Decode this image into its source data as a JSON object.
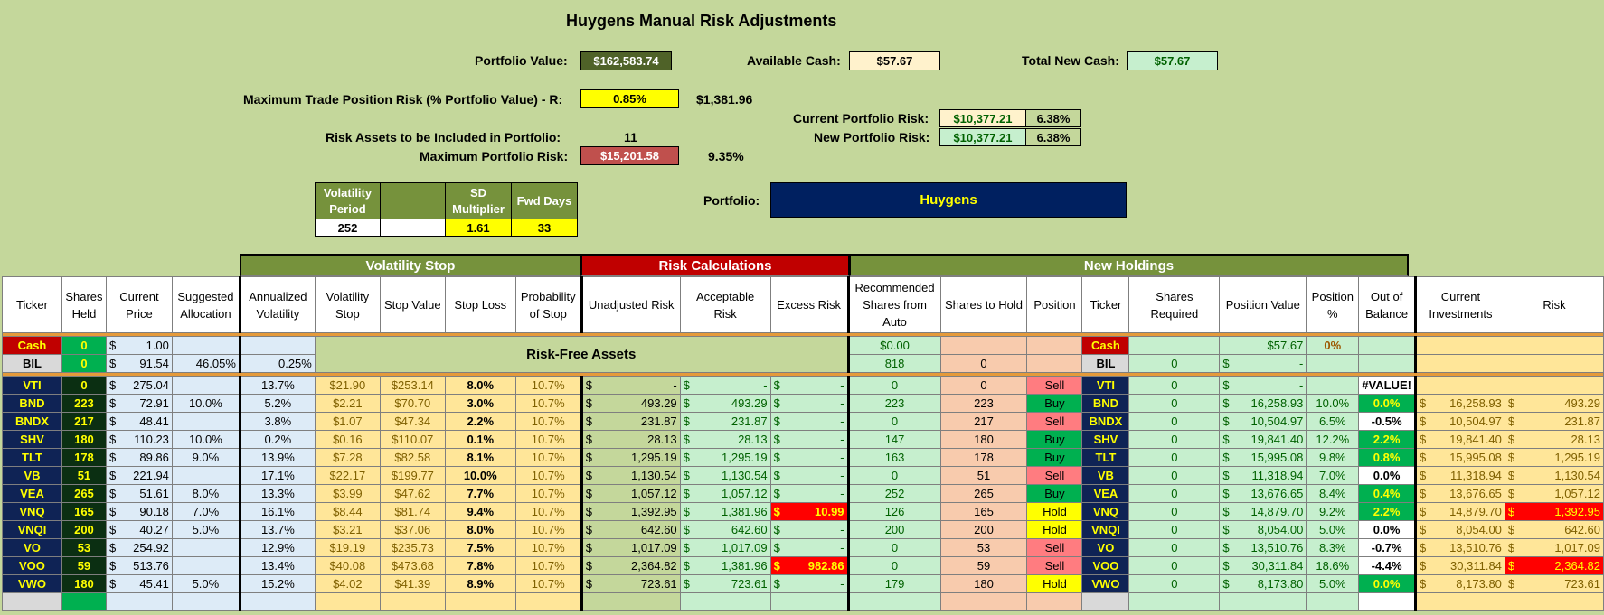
{
  "title": "Huygens Manual Risk Adjustments",
  "portfolio_value": {
    "label": "Portfolio Value:",
    "value": "$162,583.74"
  },
  "available_cash": {
    "label": "Available Cash:",
    "value": "$57.67"
  },
  "total_new_cash": {
    "label": "Total New Cash:",
    "value": "$57.67"
  },
  "max_trade_risk": {
    "label": "Maximum Trade Position Risk (% Portfolio Value) - R:",
    "value": "0.85%",
    "amount": "$1,381.96"
  },
  "current_portfolio_risk": {
    "label": "Current Portfolio Risk:",
    "value": "$10,377.21",
    "pct": "6.38%"
  },
  "new_portfolio_risk": {
    "label": "New Portfolio Risk:",
    "value": "$10,377.21",
    "pct": "6.38%"
  },
  "risk_assets": {
    "label": "Risk Assets to be Included in Portfolio:",
    "value": "11"
  },
  "max_portfolio_risk": {
    "label": "Maximum Portfolio Risk:",
    "value": "$15,201.58",
    "pct": "9.35%"
  },
  "params": {
    "vol_period_label": "Volatility Period",
    "sd_mult_label": "SD Multiplier",
    "fwd_days_label": "Fwd Days",
    "vol_period": "252",
    "sd_mult": "1.61",
    "fwd_days": "33"
  },
  "portfolio": {
    "label": "Portfolio:",
    "value": "Huygens"
  },
  "sections": {
    "vol_stop": "Volatility Stop",
    "risk_calc": "Risk Calculations",
    "new_holdings": "New Holdings"
  },
  "headers": [
    "Ticker",
    "Shares Held",
    "Current Price",
    "Suggested Allocation",
    "Annualized Volatility",
    "Volatility Stop",
    "Stop Value",
    "Stop Loss",
    "Probability of Stop",
    "Unadjusted Risk",
    "Acceptable Risk",
    "Excess Risk",
    "Recommended Shares from Auto",
    "Shares to Hold",
    "Position",
    "Ticker",
    "Shares Required",
    "Position Value",
    "Position %",
    "Out of Balance",
    "Current Investments",
    "Risk"
  ],
  "risk_free_label": "Risk-Free Assets",
  "cash_row": {
    "ticker": "Cash",
    "shares": "0",
    "price": "1.00",
    "rec": "$0.00",
    "ticker2": "Cash",
    "pos_value": "$57.67",
    "pos_pct": "0%"
  },
  "bil_row": {
    "ticker": "BIL",
    "shares": "0",
    "price": "91.54",
    "alloc": "46.05%",
    "vol": "0.25%",
    "rec": "818",
    "hold": "0",
    "ticker2": "BIL",
    "req": "0",
    "pos_value": "-"
  },
  "rows": [
    {
      "ticker": "VTI",
      "shares": "0",
      "price": "275.04",
      "alloc": "",
      "vol": "13.7%",
      "vstop": "$21.90",
      "svalue": "$253.14",
      "sloss": "8.0%",
      "prob": "10.7%",
      "unadj": "-",
      "accept": "-",
      "excess": "-",
      "rec": "0",
      "hold": "0",
      "pos": "Sell",
      "req": "0",
      "pval": "-",
      "ppct": "",
      "oob": "#VALUE!",
      "curinv": "",
      "risk": ""
    },
    {
      "ticker": "BND",
      "shares": "223",
      "price": "72.91",
      "alloc": "10.0%",
      "vol": "5.2%",
      "vstop": "$2.21",
      "svalue": "$70.70",
      "sloss": "3.0%",
      "prob": "10.7%",
      "unadj": "493.29",
      "accept": "493.29",
      "excess": "-",
      "rec": "223",
      "hold": "223",
      "pos": "Buy",
      "req": "0",
      "pval": "16,258.93",
      "ppct": "10.0%",
      "oob": "0.0%",
      "curinv": "16,258.93",
      "risk": "493.29"
    },
    {
      "ticker": "BNDX",
      "shares": "217",
      "price": "48.41",
      "alloc": "",
      "vol": "3.8%",
      "vstop": "$1.07",
      "svalue": "$47.34",
      "sloss": "2.2%",
      "prob": "10.7%",
      "unadj": "231.87",
      "accept": "231.87",
      "excess": "-",
      "rec": "0",
      "hold": "217",
      "pos": "Sell",
      "req": "0",
      "pval": "10,504.97",
      "ppct": "6.5%",
      "oob": "-0.5%",
      "curinv": "10,504.97",
      "risk": "231.87"
    },
    {
      "ticker": "SHV",
      "shares": "180",
      "price": "110.23",
      "alloc": "10.0%",
      "vol": "0.2%",
      "vstop": "$0.16",
      "svalue": "$110.07",
      "sloss": "0.1%",
      "prob": "10.7%",
      "unadj": "28.13",
      "accept": "28.13",
      "excess": "-",
      "rec": "147",
      "hold": "180",
      "pos": "Buy",
      "req": "0",
      "pval": "19,841.40",
      "ppct": "12.2%",
      "oob": "2.2%",
      "curinv": "19,841.40",
      "risk": "28.13"
    },
    {
      "ticker": "TLT",
      "shares": "178",
      "price": "89.86",
      "alloc": "9.0%",
      "vol": "13.9%",
      "vstop": "$7.28",
      "svalue": "$82.58",
      "sloss": "8.1%",
      "prob": "10.7%",
      "unadj": "1,295.19",
      "accept": "1,295.19",
      "excess": "-",
      "rec": "163",
      "hold": "178",
      "pos": "Buy",
      "req": "0",
      "pval": "15,995.08",
      "ppct": "9.8%",
      "oob": "0.8%",
      "curinv": "15,995.08",
      "risk": "1,295.19"
    },
    {
      "ticker": "VB",
      "shares": "51",
      "price": "221.94",
      "alloc": "",
      "vol": "17.1%",
      "vstop": "$22.17",
      "svalue": "$199.77",
      "sloss": "10.0%",
      "prob": "10.7%",
      "unadj": "1,130.54",
      "accept": "1,130.54",
      "excess": "-",
      "rec": "0",
      "hold": "51",
      "pos": "Sell",
      "req": "0",
      "pval": "11,318.94",
      "ppct": "7.0%",
      "oob": "0.0%",
      "curinv": "11,318.94",
      "risk": "1,130.54"
    },
    {
      "ticker": "VEA",
      "shares": "265",
      "price": "51.61",
      "alloc": "8.0%",
      "vol": "13.3%",
      "vstop": "$3.99",
      "svalue": "$47.62",
      "sloss": "7.7%",
      "prob": "10.7%",
      "unadj": "1,057.12",
      "accept": "1,057.12",
      "excess": "-",
      "rec": "252",
      "hold": "265",
      "pos": "Buy",
      "req": "0",
      "pval": "13,676.65",
      "ppct": "8.4%",
      "oob": "0.4%",
      "curinv": "13,676.65",
      "risk": "1,057.12"
    },
    {
      "ticker": "VNQ",
      "shares": "165",
      "price": "90.18",
      "alloc": "7.0%",
      "vol": "16.1%",
      "vstop": "$8.44",
      "svalue": "$81.74",
      "sloss": "9.4%",
      "prob": "10.7%",
      "unadj": "1,392.95",
      "accept": "1,381.96",
      "excess": "10.99",
      "rec": "126",
      "hold": "165",
      "pos": "Hold",
      "req": "0",
      "pval": "14,879.70",
      "ppct": "9.2%",
      "oob": "2.2%",
      "curinv": "14,879.70",
      "risk": "1,392.95"
    },
    {
      "ticker": "VNQI",
      "shares": "200",
      "price": "40.27",
      "alloc": "5.0%",
      "vol": "13.7%",
      "vstop": "$3.21",
      "svalue": "$37.06",
      "sloss": "8.0%",
      "prob": "10.7%",
      "unadj": "642.60",
      "accept": "642.60",
      "excess": "-",
      "rec": "200",
      "hold": "200",
      "pos": "Hold",
      "req": "0",
      "pval": "8,054.00",
      "ppct": "5.0%",
      "oob": "0.0%",
      "curinv": "8,054.00",
      "risk": "642.60"
    },
    {
      "ticker": "VO",
      "shares": "53",
      "price": "254.92",
      "alloc": "",
      "vol": "12.9%",
      "vstop": "$19.19",
      "svalue": "$235.73",
      "sloss": "7.5%",
      "prob": "10.7%",
      "unadj": "1,017.09",
      "accept": "1,017.09",
      "excess": "-",
      "rec": "0",
      "hold": "53",
      "pos": "Sell",
      "req": "0",
      "pval": "13,510.76",
      "ppct": "8.3%",
      "oob": "-0.7%",
      "curinv": "13,510.76",
      "risk": "1,017.09"
    },
    {
      "ticker": "VOO",
      "shares": "59",
      "price": "513.76",
      "alloc": "",
      "vol": "13.4%",
      "vstop": "$40.08",
      "svalue": "$473.68",
      "sloss": "7.8%",
      "prob": "10.7%",
      "unadj": "2,364.82",
      "accept": "1,381.96",
      "excess": "982.86",
      "rec": "0",
      "hold": "59",
      "pos": "Sell",
      "req": "0",
      "pval": "30,311.84",
      "ppct": "18.6%",
      "oob": "-4.4%",
      "curinv": "30,311.84",
      "risk": "2,364.82"
    },
    {
      "ticker": "VWO",
      "shares": "180",
      "price": "45.41",
      "alloc": "5.0%",
      "vol": "15.2%",
      "vstop": "$4.02",
      "svalue": "$41.39",
      "sloss": "8.9%",
      "prob": "10.7%",
      "unadj": "723.61",
      "accept": "723.61",
      "excess": "-",
      "rec": "179",
      "hold": "180",
      "pos": "Hold",
      "req": "0",
      "pval": "8,173.80",
      "ppct": "5.0%",
      "oob": "0.0%",
      "curinv": "8,173.80",
      "risk": "723.61"
    }
  ]
}
